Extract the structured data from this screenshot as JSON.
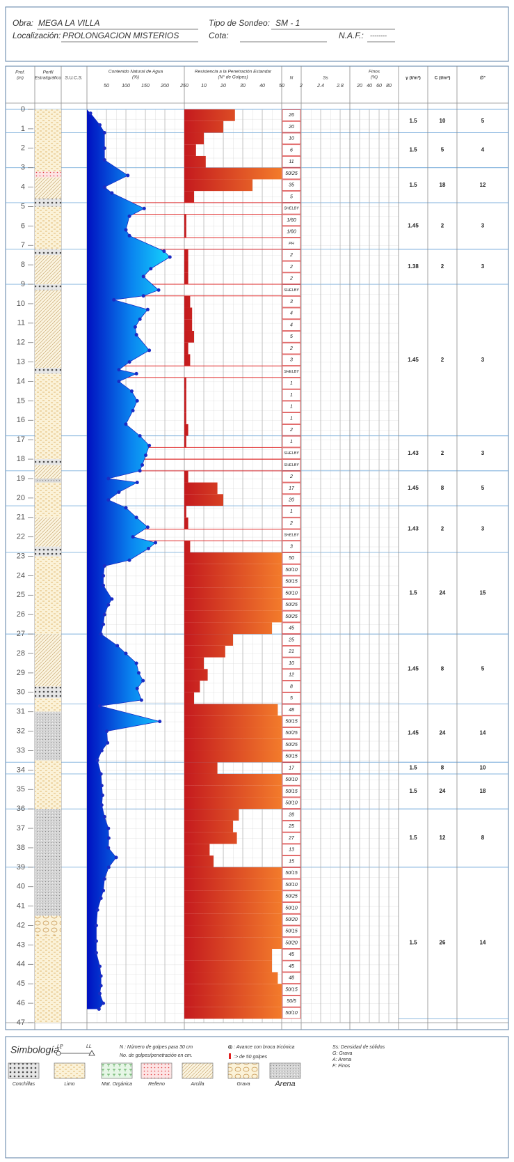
{
  "header": {
    "obra_label": "Obra:",
    "obra": "MEGA LA VILLA",
    "localizacion_label": "Localización:",
    "localizacion": "PROLONGACION MISTERIOS",
    "tipo_label": "Tipo de Sondeo:",
    "tipo": "SM - 1",
    "cota_label": "Cota:",
    "naf_label": "N.A.F.:",
    "naf": "--------"
  },
  "columns": {
    "prof": "Prof.",
    "prof_units": "(m)",
    "perfil": "Perfil",
    "perfil2": "Estratigráfico",
    "sucs": "S.U.C.S.",
    "n": "N",
    "gamma": "γ (t/m³)",
    "c": "C (t/m²)",
    "phi": "∅°"
  },
  "depth": {
    "lim": [
      0,
      47
    ],
    "ticks": [
      0,
      1,
      2,
      3,
      4,
      5,
      6,
      7,
      8,
      9,
      10,
      11,
      12,
      13,
      14,
      15,
      16,
      17,
      18,
      19,
      20,
      21,
      22,
      23,
      24,
      25,
      26,
      27,
      28,
      29,
      30,
      31,
      32,
      33,
      34,
      35,
      36,
      37,
      38,
      39,
      40,
      41,
      42,
      43,
      44,
      45,
      46,
      47
    ]
  },
  "water": {
    "title": "Contenido Natural de Agua",
    "units": "(%)",
    "xlim": [
      0,
      250
    ],
    "xticks": [
      50,
      100,
      150,
      200,
      250
    ],
    "color": "#1a2cc4",
    "depth": [
      0.2,
      0.8,
      1.2,
      2,
      2.6,
      3.4,
      4,
      4.3,
      5.1,
      5.5,
      6.2,
      6.5,
      7.3,
      7.6,
      8.2,
      8.6,
      9.3,
      9.6,
      9.8,
      10.3,
      10.8,
      11.2,
      11.6,
      12.4,
      13,
      13.4,
      13.6,
      14,
      14.5,
      15,
      15.5,
      16.2,
      16.8,
      17.3,
      17.8,
      18.3,
      18.6,
      19,
      19.2,
      19.7,
      20.1,
      20.5,
      21,
      21.5,
      22,
      22.3,
      22.6,
      23.2,
      23.5,
      24,
      24.5,
      25.2,
      25.5,
      26,
      26.5,
      27,
      27.6,
      28,
      28.5,
      29,
      29.4,
      29.8,
      30.4,
      30.7,
      31.5,
      32,
      32.6,
      33,
      33.5,
      34.2,
      34.8,
      35.3,
      35.8,
      36.4,
      37,
      37.5,
      38,
      38.5,
      39,
      39.6,
      40.2,
      40.6,
      41.2,
      42,
      42.8,
      43.4,
      44.1,
      44.6,
      45.1,
      45.5,
      46,
      46.3
    ],
    "values": [
      9,
      33,
      45,
      45,
      45,
      105,
      45,
      64,
      147,
      109,
      100,
      109,
      198,
      213,
      164,
      145,
      184,
      145,
      69,
      156,
      136,
      124,
      127,
      160,
      109,
      82,
      127,
      82,
      115,
      129,
      118,
      100,
      136,
      160,
      151,
      142,
      136,
      55,
      129,
      82,
      55,
      100,
      127,
      156,
      118,
      176,
      158,
      109,
      45,
      42,
      42,
      64,
      55,
      45,
      42,
      36,
      78,
      100,
      127,
      133,
      144,
      129,
      140,
      33,
      187,
      51,
      53,
      38,
      27,
      36,
      38,
      40,
      38,
      45,
      55,
      56,
      55,
      75,
      56,
      45,
      42,
      36,
      27,
      24,
      24,
      24,
      33,
      36,
      36,
      33,
      42,
      31
    ]
  },
  "spt": {
    "title": "Resistencia a la Penetración Estandar",
    "units": "(N° de Golpes)",
    "xlim": [
      0,
      50
    ],
    "xticks": [
      10,
      20,
      30,
      40,
      50
    ],
    "bounds": [
      0,
      0.6,
      1.2,
      1.8,
      2.4,
      3,
      3.6,
      4.2,
      4.8,
      5.4,
      6,
      6.6,
      7.2,
      7.8,
      8.4,
      9,
      9.6,
      10.2,
      10.8,
      11.4,
      12,
      12.6,
      13.2,
      13.8,
      14.4,
      15,
      15.6,
      16.2,
      16.8,
      17.4,
      18,
      18.6,
      19.2,
      19.8,
      20.4,
      21,
      21.6,
      22.2,
      22.8,
      23.4,
      24,
      24.6,
      25.2,
      25.8,
      26.4,
      27,
      27.6,
      28.2,
      28.8,
      29.4,
      30,
      30.6,
      31.2,
      31.8,
      32.4,
      33,
      33.6,
      34.2,
      34.8,
      35.4,
      36,
      36.6,
      37.2,
      37.8,
      38.4,
      39,
      39.6,
      40.2,
      40.8,
      41.4,
      42,
      42.6,
      43.2,
      43.8,
      44.4,
      45,
      45.6,
      46.2,
      46.8
    ],
    "values": [
      26,
      20,
      10,
      6,
      11,
      50,
      35,
      5,
      null,
      1,
      1,
      null,
      2,
      2,
      2,
      null,
      3,
      4,
      4,
      5,
      2,
      3,
      null,
      1,
      1,
      1,
      1,
      2,
      1,
      null,
      null,
      2,
      17,
      20,
      1,
      2,
      null,
      3,
      50,
      50,
      50,
      50,
      50,
      50,
      45,
      25,
      21,
      10,
      12,
      8,
      5,
      48,
      50,
      50,
      50,
      50,
      17,
      50,
      50,
      50,
      28,
      25,
      27,
      13,
      15,
      50,
      50,
      50,
      50,
      50,
      50,
      50,
      45,
      45,
      48,
      50,
      50,
      50
    ],
    "value_labels": [
      "26",
      "20",
      "10",
      "6",
      "11",
      "50/25",
      "35",
      "5",
      "SHELBY",
      "1/60",
      "1/60",
      "PH",
      "2",
      "2",
      "2",
      "SHELBY",
      "3",
      "4",
      "4",
      "5",
      "2",
      "3",
      "SHELBY",
      "1",
      "1",
      "1",
      "1",
      "2",
      "1",
      "SHELBY",
      "SHELBY",
      "2",
      "17",
      "20",
      "1",
      "2",
      "SHELBY",
      "3",
      "50",
      "50/10",
      "50/15",
      "50/10",
      "50/25",
      "50/25",
      "45",
      "25",
      "21",
      "10",
      "12",
      "8",
      "5",
      "48",
      "50/15",
      "50/25",
      "50/25",
      "50/15",
      "17",
      "50/10",
      "50/15",
      "50/10",
      "28",
      "25",
      "27",
      "13",
      "15",
      "50/15",
      "50/10",
      "50/25",
      "50/10",
      "50/20",
      "50/15",
      "50/20",
      "45",
      "45",
      "48",
      "50/15",
      "50/5",
      "50/10"
    ]
  },
  "ss": {
    "title": "Ss",
    "xlim": [
      2,
      3
    ],
    "xticks": [
      2,
      2.4,
      2.8
    ]
  },
  "finos": {
    "title": "Finos",
    "units": "(%)",
    "xlim": [
      0,
      100
    ],
    "xticks": [
      20,
      40,
      60,
      80
    ]
  },
  "properties": [
    {
      "from": 0,
      "to": 1.2,
      "gamma": 1.5,
      "c": 10,
      "phi": 5
    },
    {
      "from": 1.2,
      "to": 3,
      "gamma": 1.5,
      "c": 5,
      "phi": 4
    },
    {
      "from": 3,
      "to": 4.8,
      "gamma": 1.5,
      "c": 18,
      "phi": 12
    },
    {
      "from": 4.8,
      "to": 7.2,
      "gamma": 1.45,
      "c": 2,
      "phi": 3
    },
    {
      "from": 7.2,
      "to": 9,
      "gamma": 1.38,
      "c": 2,
      "phi": 3
    },
    {
      "from": 9,
      "to": 16.8,
      "gamma": 1.45,
      "c": 2,
      "phi": 3
    },
    {
      "from": 16.8,
      "to": 18.6,
      "gamma": 1.43,
      "c": 2,
      "phi": 3
    },
    {
      "from": 18.6,
      "to": 20.4,
      "gamma": 1.45,
      "c": 8,
      "phi": 5
    },
    {
      "from": 20.4,
      "to": 22.8,
      "gamma": 1.43,
      "c": 2,
      "phi": 3
    },
    {
      "from": 22.8,
      "to": 27,
      "gamma": 1.5,
      "c": 24,
      "phi": 15
    },
    {
      "from": 27,
      "to": 30.6,
      "gamma": 1.45,
      "c": 8,
      "phi": 5
    },
    {
      "from": 30.6,
      "to": 33.6,
      "gamma": 1.45,
      "c": 24,
      "phi": 14
    },
    {
      "from": 33.6,
      "to": 34.2,
      "gamma": 1.5,
      "c": 8,
      "phi": 10
    },
    {
      "from": 34.2,
      "to": 36,
      "gamma": 1.5,
      "c": 24,
      "phi": 18
    },
    {
      "from": 36,
      "to": 39,
      "gamma": 1.5,
      "c": 12,
      "phi": 8
    },
    {
      "from": 39,
      "to": 46.8,
      "gamma": 1.5,
      "c": 26,
      "phi": 14
    }
  ],
  "profile": [
    {
      "from": 0,
      "to": 3.2,
      "soil": "Limo"
    },
    {
      "from": 3.2,
      "to": 3.5,
      "soil": "Relleno"
    },
    {
      "from": 3.5,
      "to": 4.6,
      "soil": "Arcilla"
    },
    {
      "from": 4.6,
      "to": 5,
      "soil": "Conchillas"
    },
    {
      "from": 5,
      "to": 7.2,
      "soil": "Limo"
    },
    {
      "from": 7.2,
      "to": 7.5,
      "soil": "Conchillas"
    },
    {
      "from": 7.5,
      "to": 9,
      "soil": "Arcilla"
    },
    {
      "from": 9,
      "to": 9.3,
      "soil": "Conchillas"
    },
    {
      "from": 9.3,
      "to": 13.3,
      "soil": "Arcilla"
    },
    {
      "from": 13.3,
      "to": 13.6,
      "soil": "Conchillas"
    },
    {
      "from": 13.6,
      "to": 18,
      "soil": "Limo"
    },
    {
      "from": 18,
      "to": 18.3,
      "soil": "Conchillas"
    },
    {
      "from": 18.3,
      "to": 19,
      "soil": "Arcilla"
    },
    {
      "from": 19,
      "to": 19.2,
      "soil": "Arena"
    },
    {
      "from": 19.2,
      "to": 21,
      "soil": "Limo"
    },
    {
      "from": 21,
      "to": 22.5,
      "soil": "Arcilla"
    },
    {
      "from": 22.5,
      "to": 23,
      "soil": "Conchillas"
    },
    {
      "from": 23,
      "to": 27,
      "soil": "Limo"
    },
    {
      "from": 27,
      "to": 29.7,
      "soil": "Arcilla"
    },
    {
      "from": 29.7,
      "to": 30.3,
      "soil": "Conchillas"
    },
    {
      "from": 30.3,
      "to": 31,
      "soil": "Limo"
    },
    {
      "from": 31,
      "to": 33.5,
      "soil": "Arena"
    },
    {
      "from": 33.5,
      "to": 36,
      "soil": "Limo"
    },
    {
      "from": 36,
      "to": 41.5,
      "soil": "Arena"
    },
    {
      "from": 41.5,
      "to": 42.5,
      "soil": "Grava"
    },
    {
      "from": 42.5,
      "to": 47,
      "soil": "Limo"
    }
  ],
  "legend": {
    "title": "Simbología:",
    "lp": "LP",
    "ll": "LL",
    "n_note": "N : Número de golpes para 30 cm",
    "n_note2": "No. de golpes/penetración en cm.",
    "tricone": ": Avance con broca tricónica",
    "over50": ":> de 50 golpes",
    "ss_note": "Ss: Densidad de sólidos",
    "g_note": "G: Grava",
    "a_note": "A: Arena",
    "f_note": "F: Finos",
    "items": [
      "Conchillas",
      "Limo",
      "Mat. Orgánica",
      "Relleno",
      "Arcilla",
      "Grava",
      "Arena"
    ]
  }
}
